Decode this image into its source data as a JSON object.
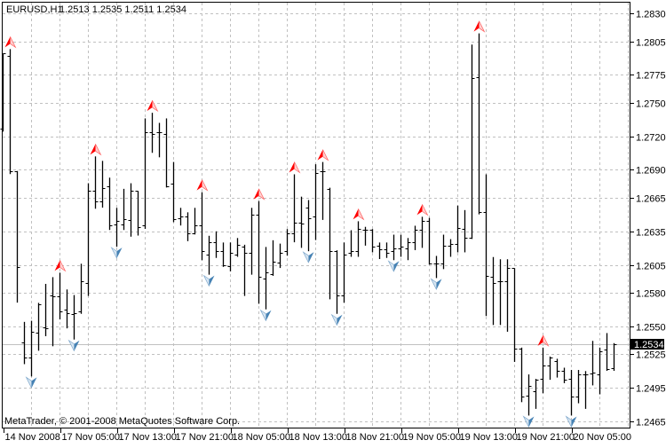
{
  "header": {
    "symbol_period": "EURUSD,H1",
    "ohlc_text": "1.2513 1.2535 1.2511 1.2534"
  },
  "copyright": "MetaTrader, © 2001-2008 MetaQuotes Software Corp.",
  "current_price": "1.2534",
  "colors": {
    "background": "#ffffff",
    "bars": "#000000",
    "grid": "#c0c0c0",
    "up_fractal": "#ff0000",
    "down_fractal": "#4682b4",
    "price_line": "#c0c0c0"
  },
  "chart_data": {
    "type": "bar",
    "style": "ohlc",
    "ylim": [
      1.2465,
      1.283
    ],
    "grid": true,
    "y_ticks": [
      "1.2830",
      "1.2805",
      "1.2775",
      "1.2750",
      "1.2720",
      "1.2690",
      "1.2665",
      "1.2635",
      "1.2605",
      "1.2580",
      "1.2550",
      "1.2525",
      "1.2495",
      "1.2465"
    ],
    "x_ticks": [
      {
        "bar": 0,
        "label": "14 Nov 2008"
      },
      {
        "bar": 8,
        "label": "17 Nov 05:00"
      },
      {
        "bar": 16,
        "label": "17 Nov 13:00"
      },
      {
        "bar": 24,
        "label": "17 Nov 21:00"
      },
      {
        "bar": 32,
        "label": "18 Nov 05:00"
      },
      {
        "bar": 40,
        "label": "18 Nov 13:00"
      },
      {
        "bar": 48,
        "label": "18 Nov 21:00"
      },
      {
        "bar": 56,
        "label": "19 Nov 05:00"
      },
      {
        "bar": 64,
        "label": "19 Nov 13:00"
      },
      {
        "bar": 72,
        "label": "19 Nov 21:00"
      },
      {
        "bar": 80,
        "label": "20 Nov 05:00"
      }
    ],
    "ohlc": [
      [
        1.2727,
        1.2794,
        1.2725,
        1.2794
      ],
      [
        1.2792,
        1.2798,
        1.2687,
        1.2689
      ],
      [
        1.2689,
        1.2689,
        1.2572,
        1.2603
      ],
      [
        1.2536,
        1.2554,
        1.2517,
        1.2522
      ],
      [
        1.2522,
        1.2555,
        1.2506,
        1.2545
      ],
      [
        1.2544,
        1.2571,
        1.2529,
        1.257
      ],
      [
        1.2549,
        1.2588,
        1.2542,
        1.2548
      ],
      [
        1.2578,
        1.2594,
        1.2533,
        1.2577
      ],
      [
        1.2577,
        1.2598,
        1.2557,
        1.2563
      ],
      [
        1.2565,
        1.2583,
        1.2549,
        1.2562
      ],
      [
        1.2561,
        1.2578,
        1.2539,
        1.2562
      ],
      [
        1.2563,
        1.2606,
        1.2562,
        1.259
      ],
      [
        1.2589,
        1.2678,
        1.2578,
        1.2671
      ],
      [
        1.2671,
        1.2702,
        1.2656,
        1.2662
      ],
      [
        1.2662,
        1.2698,
        1.2657,
        1.2674
      ],
      [
        1.2675,
        1.2683,
        1.2637,
        1.264
      ],
      [
        1.2641,
        1.2656,
        1.2622,
        1.2644
      ],
      [
        1.2641,
        1.2673,
        1.2637,
        1.2646
      ],
      [
        1.2645,
        1.2678,
        1.2631,
        1.2671
      ],
      [
        1.2671,
        1.2671,
        1.2632,
        1.2639
      ],
      [
        1.264,
        1.2736,
        1.2638,
        1.2724
      ],
      [
        1.2724,
        1.2741,
        1.2706,
        1.2722
      ],
      [
        1.2724,
        1.2732,
        1.2702,
        1.2724
      ],
      [
        1.2722,
        1.2736,
        1.2675,
        1.2675
      ],
      [
        1.2678,
        1.2697,
        1.2644,
        1.2646
      ],
      [
        1.2647,
        1.2656,
        1.2641,
        1.2648
      ],
      [
        1.2648,
        1.2652,
        1.2627,
        1.2633
      ],
      [
        1.2633,
        1.2656,
        1.2633,
        1.264
      ],
      [
        1.264,
        1.267,
        1.261,
        1.2617
      ],
      [
        1.2614,
        1.2631,
        1.2597,
        1.2625
      ],
      [
        1.2625,
        1.2635,
        1.2612,
        1.2617
      ],
      [
        1.2617,
        1.2625,
        1.2604,
        1.2605
      ],
      [
        1.2604,
        1.2625,
        1.26,
        1.2616
      ],
      [
        1.2614,
        1.2629,
        1.2613,
        1.2623
      ],
      [
        1.2621,
        1.2623,
        1.2578,
        1.2616
      ],
      [
        1.2616,
        1.2656,
        1.2597,
        1.265
      ],
      [
        1.265,
        1.2662,
        1.2571,
        1.2594
      ],
      [
        1.2593,
        1.2621,
        1.2566,
        1.2598
      ],
      [
        1.2597,
        1.2627,
        1.2596,
        1.2608
      ],
      [
        1.2607,
        1.2624,
        1.2603,
        1.2616
      ],
      [
        1.2617,
        1.2637,
        1.2614,
        1.2633
      ],
      [
        1.2633,
        1.2686,
        1.2626,
        1.2643
      ],
      [
        1.2643,
        1.2666,
        1.2621,
        1.2642
      ],
      [
        1.2656,
        1.2663,
        1.2618,
        1.2647
      ],
      [
        1.2648,
        1.2695,
        1.2628,
        1.2687
      ],
      [
        1.2689,
        1.2697,
        1.2646,
        1.2689
      ],
      [
        1.2673,
        1.2674,
        1.2575,
        1.2617
      ],
      [
        1.2617,
        1.2618,
        1.2562,
        1.2578
      ],
      [
        1.2578,
        1.2625,
        1.2572,
        1.2614
      ],
      [
        1.2616,
        1.2636,
        1.2613,
        1.2617
      ],
      [
        1.2617,
        1.2644,
        1.2613,
        1.2637
      ],
      [
        1.2636,
        1.2639,
        1.2623,
        1.2636
      ],
      [
        1.2636,
        1.2637,
        1.2617,
        1.2621
      ],
      [
        1.2622,
        1.2625,
        1.2611,
        1.2619
      ],
      [
        1.2619,
        1.2625,
        1.2612,
        1.2616
      ],
      [
        1.2617,
        1.2632,
        1.261,
        1.262
      ],
      [
        1.262,
        1.2632,
        1.2613,
        1.2621
      ],
      [
        1.262,
        1.2629,
        1.261,
        1.2625
      ],
      [
        1.2625,
        1.264,
        1.2619,
        1.2636
      ],
      [
        1.2636,
        1.2648,
        1.2621,
        1.2644
      ],
      [
        1.2644,
        1.2647,
        1.2606,
        1.2606
      ],
      [
        1.2606,
        1.2613,
        1.2594,
        1.2606
      ],
      [
        1.2606,
        1.2632,
        1.2602,
        1.2622
      ],
      [
        1.2622,
        1.2628,
        1.2613,
        1.2624
      ],
      [
        1.2624,
        1.2658,
        1.2617,
        1.2638
      ],
      [
        1.2637,
        1.2654,
        1.2617,
        1.2629
      ],
      [
        1.2629,
        1.2802,
        1.2629,
        1.2772
      ],
      [
        1.2773,
        1.2812,
        1.2651,
        1.2652
      ],
      [
        1.2652,
        1.2686,
        1.256,
        1.2595
      ],
      [
        1.2594,
        1.2612,
        1.2552,
        1.2589
      ],
      [
        1.259,
        1.261,
        1.2552,
        1.259
      ],
      [
        1.259,
        1.261,
        1.2546,
        1.2602
      ],
      [
        1.2602,
        1.2602,
        1.2519,
        1.253
      ],
      [
        1.253,
        1.2531,
        1.2483,
        1.2487
      ],
      [
        1.2488,
        1.2507,
        1.2471,
        1.2497
      ],
      [
        1.2492,
        1.2503,
        1.2477,
        1.2502
      ],
      [
        1.2503,
        1.2531,
        1.2491,
        1.2515
      ],
      [
        1.2515,
        1.2523,
        1.2503,
        1.2522
      ],
      [
        1.2519,
        1.2521,
        1.2505,
        1.251
      ],
      [
        1.251,
        1.2513,
        1.25,
        1.2502
      ],
      [
        1.2503,
        1.2511,
        1.2471,
        1.2487
      ],
      [
        1.2487,
        1.2511,
        1.2482,
        1.2507
      ],
      [
        1.2507,
        1.251,
        1.2477,
        1.2507
      ],
      [
        1.2508,
        1.2537,
        1.2498,
        1.2509
      ],
      [
        1.2507,
        1.2531,
        1.249,
        1.2528
      ],
      [
        1.2529,
        1.2544,
        1.2511,
        1.2512
      ],
      [
        1.2513,
        1.2535,
        1.2511,
        1.2534
      ]
    ],
    "fractals_up": [
      1,
      8,
      13,
      21,
      28,
      36,
      41,
      45,
      50,
      59,
      67,
      76
    ],
    "fractals_down": [
      4,
      10,
      16,
      29,
      37,
      43,
      47,
      55,
      61,
      74,
      80
    ]
  }
}
